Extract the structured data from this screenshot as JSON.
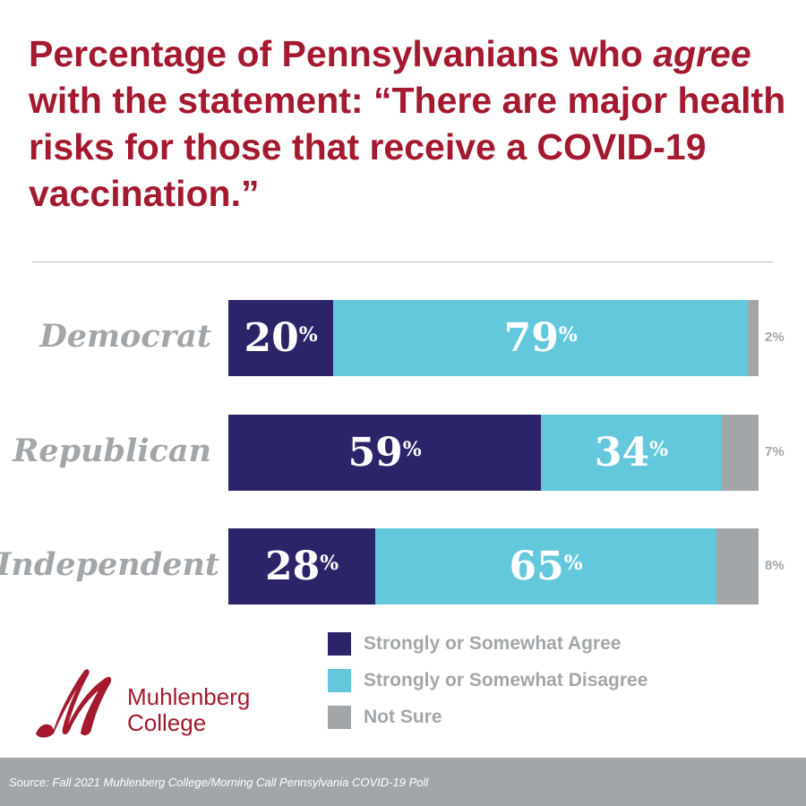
{
  "title_parts": {
    "a": "Percentage of Pennsylvanians who ",
    "b": "agree",
    "c": " with the statement: “There are major health risks for those that receive a COVID-19 vaccination.”"
  },
  "chart_data": {
    "type": "bar",
    "orientation": "horizontal-stacked",
    "title": "Percentage of Pennsylvanians who agree with the statement: “There are major health risks for those that receive a COVID-19 vaccination.”",
    "categories": [
      "Democrat",
      "Republican",
      "Independent"
    ],
    "series": [
      {
        "name": "Strongly or Somewhat Agree",
        "color": "#2C2469",
        "values": [
          20,
          59,
          28
        ]
      },
      {
        "name": "Strongly or Somewhat Disagree",
        "color": "#64C8DC",
        "values": [
          79,
          34,
          65
        ]
      },
      {
        "name": "Not Sure",
        "color": "#A2A6A9",
        "values": [
          2,
          7,
          8
        ]
      }
    ],
    "unit": "%",
    "legend": "bottom-right"
  },
  "logo": {
    "line1": "Muhlenberg",
    "line2": "College"
  },
  "source": "Source: Fall 2021 Muhlenberg College/Morning Call Pennsylvania COVID-19 Poll"
}
